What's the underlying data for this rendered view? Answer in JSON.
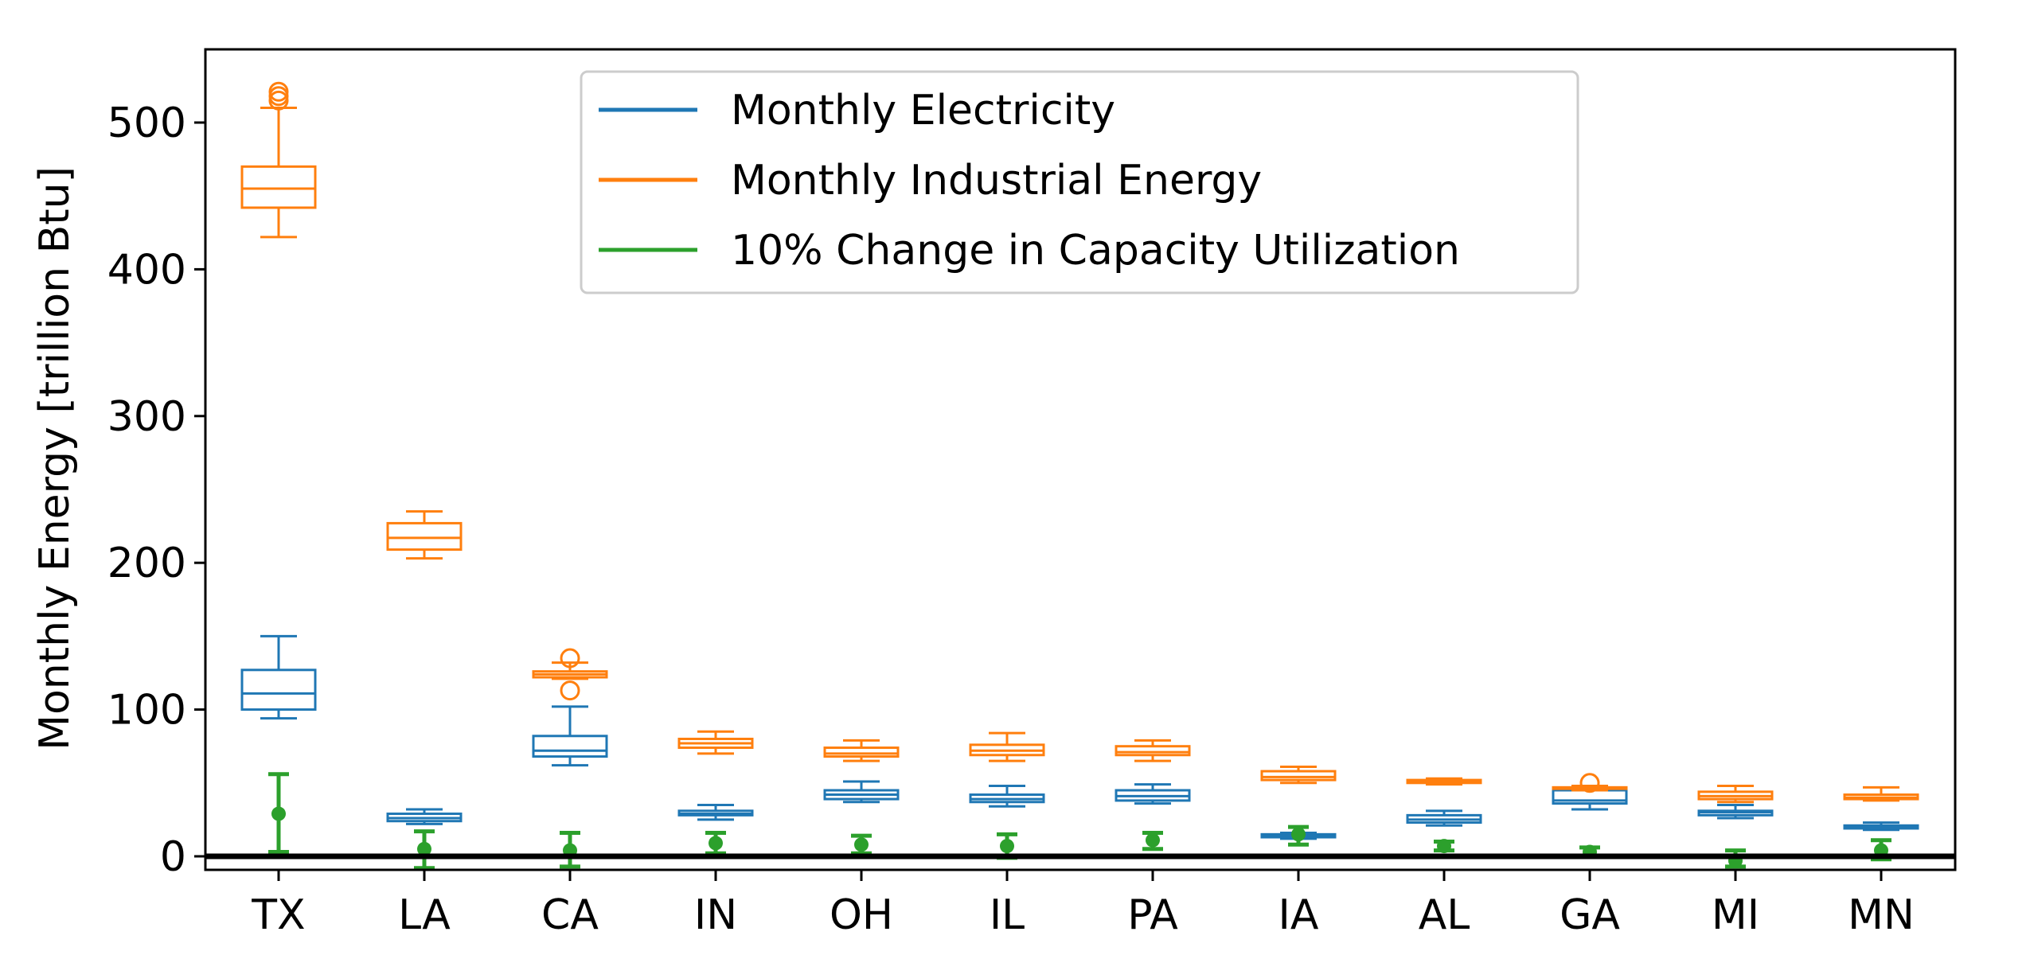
{
  "chart_data": {
    "type": "box",
    "title": "",
    "xlabel": "",
    "ylabel": "Monthly Energy [trillion Btu]",
    "ylim": [
      -10,
      550
    ],
    "yticks": [
      0,
      100,
      200,
      300,
      400,
      500
    ],
    "grid": false,
    "zero_line": 0,
    "legend_position": "upper-center",
    "categories": [
      "TX",
      "LA",
      "CA",
      "IN",
      "OH",
      "IL",
      "PA",
      "IA",
      "AL",
      "GA",
      "MI",
      "MN"
    ],
    "series": [
      {
        "name": "Monthly Electricity",
        "color": "#1f77b4",
        "kind": "box",
        "boxes": [
          {
            "whislo": 94,
            "q1": 100,
            "med": 111,
            "q3": 127,
            "whishi": 150,
            "fliers": []
          },
          {
            "whislo": 22,
            "q1": 24,
            "med": 26,
            "q3": 29,
            "whishi": 32,
            "fliers": []
          },
          {
            "whislo": 62,
            "q1": 68,
            "med": 72,
            "q3": 82,
            "whishi": 102,
            "fliers": []
          },
          {
            "whislo": 25,
            "q1": 28,
            "med": 29,
            "q3": 31,
            "whishi": 35,
            "fliers": []
          },
          {
            "whislo": 37,
            "q1": 39,
            "med": 42,
            "q3": 45,
            "whishi": 51,
            "fliers": []
          },
          {
            "whislo": 34,
            "q1": 37,
            "med": 39,
            "q3": 42,
            "whishi": 48,
            "fliers": []
          },
          {
            "whislo": 36,
            "q1": 38,
            "med": 41,
            "q3": 45,
            "whishi": 49,
            "fliers": []
          },
          {
            "whislo": 12,
            "q1": 13,
            "med": 14,
            "q3": 15,
            "whishi": 16,
            "fliers": []
          },
          {
            "whislo": 21,
            "q1": 23,
            "med": 25,
            "q3": 28,
            "whishi": 31,
            "fliers": []
          },
          {
            "whislo": 32,
            "q1": 36,
            "med": 38,
            "q3": 45,
            "whishi": 48,
            "fliers": []
          },
          {
            "whislo": 26,
            "q1": 28,
            "med": 30,
            "q3": 31,
            "whishi": 35,
            "fliers": []
          },
          {
            "whislo": 18,
            "q1": 19,
            "med": 20,
            "q3": 21,
            "whishi": 23,
            "fliers": []
          }
        ]
      },
      {
        "name": "Monthly Industrial Energy",
        "color": "#ff7f0e",
        "kind": "box",
        "boxes": [
          {
            "whislo": 422,
            "q1": 442,
            "med": 455,
            "q3": 470,
            "whishi": 510,
            "fliers": [
              515,
              518,
              521
            ]
          },
          {
            "whislo": 203,
            "q1": 209,
            "med": 217,
            "q3": 227,
            "whishi": 235,
            "fliers": []
          },
          {
            "whislo": 121,
            "q1": 122,
            "med": 124,
            "q3": 126,
            "whishi": 132,
            "fliers": [
              113,
              135
            ]
          },
          {
            "whislo": 70,
            "q1": 74,
            "med": 77,
            "q3": 80,
            "whishi": 85,
            "fliers": []
          },
          {
            "whislo": 65,
            "q1": 68,
            "med": 70,
            "q3": 74,
            "whishi": 79,
            "fliers": []
          },
          {
            "whislo": 65,
            "q1": 69,
            "med": 72,
            "q3": 76,
            "whishi": 84,
            "fliers": []
          },
          {
            "whislo": 65,
            "q1": 69,
            "med": 71,
            "q3": 75,
            "whishi": 79,
            "fliers": []
          },
          {
            "whislo": 50,
            "q1": 52,
            "med": 54,
            "q3": 58,
            "whishi": 61,
            "fliers": []
          },
          {
            "whislo": 49,
            "q1": 50,
            "med": 51,
            "q3": 52,
            "whishi": 53,
            "fliers": []
          },
          {
            "whislo": 45,
            "q1": 46,
            "med": 46.5,
            "q3": 47,
            "whishi": 48,
            "fliers": [
              50
            ]
          },
          {
            "whislo": 37,
            "q1": 39,
            "med": 41,
            "q3": 44,
            "whishi": 48,
            "fliers": []
          },
          {
            "whislo": 38,
            "q1": 39,
            "med": 40,
            "q3": 42,
            "whishi": 47,
            "fliers": []
          }
        ]
      },
      {
        "name": "10% Change in Capacity Utilization",
        "color": "#2ca02c",
        "kind": "errorbar",
        "points": [
          {
            "value": 29,
            "low": 3,
            "high": 56
          },
          {
            "value": 5,
            "low": -8,
            "high": 17
          },
          {
            "value": 4,
            "low": -7,
            "high": 16
          },
          {
            "value": 9,
            "low": 2,
            "high": 16
          },
          {
            "value": 8,
            "low": 2,
            "high": 14
          },
          {
            "value": 7,
            "low": -1,
            "high": 15
          },
          {
            "value": 11,
            "low": 5,
            "high": 16
          },
          {
            "value": 15,
            "low": 8,
            "high": 20
          },
          {
            "value": 7,
            "low": 4,
            "high": 10
          },
          {
            "value": 3,
            "low": 0,
            "high": 6
          },
          {
            "value": -3,
            "low": -7,
            "high": 4
          },
          {
            "value": 4,
            "low": -2,
            "high": 11
          }
        ]
      }
    ]
  }
}
